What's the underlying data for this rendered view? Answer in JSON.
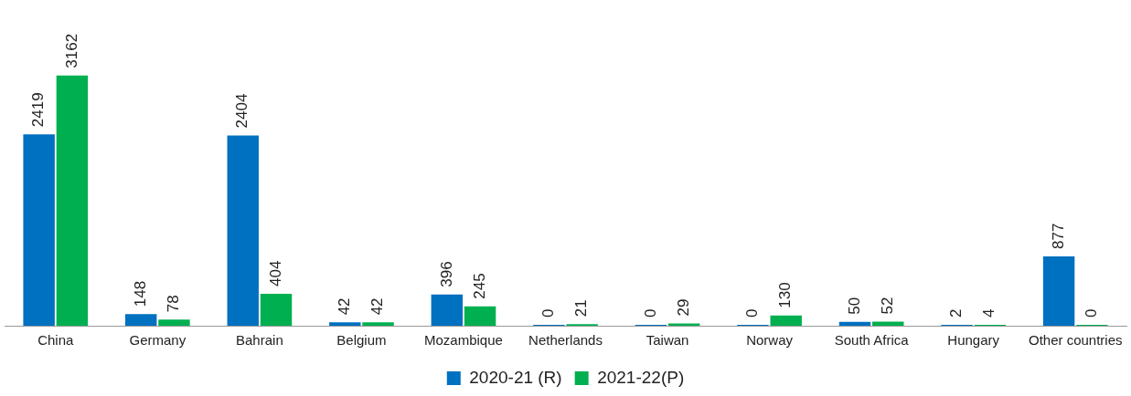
{
  "chart_data": {
    "type": "bar",
    "categories": [
      "China",
      "Germany",
      "Bahrain",
      "Belgium",
      "Mozambique",
      "Netherlands",
      "Taiwan",
      "Norway",
      "South Africa",
      "Hungary",
      "Other countries"
    ],
    "series": [
      {
        "name": "2020-21 (R)",
        "color": "#0070c0",
        "values": [
          2419,
          148,
          2404,
          42,
          396,
          0,
          0,
          0,
          50,
          2,
          877
        ]
      },
      {
        "name": "2021-22(P)",
        "color": "#00b050",
        "values": [
          3162,
          78,
          404,
          42,
          245,
          21,
          29,
          130,
          52,
          4,
          0
        ]
      }
    ],
    "data_labels": true,
    "legend": "bottom",
    "grid": false
  }
}
